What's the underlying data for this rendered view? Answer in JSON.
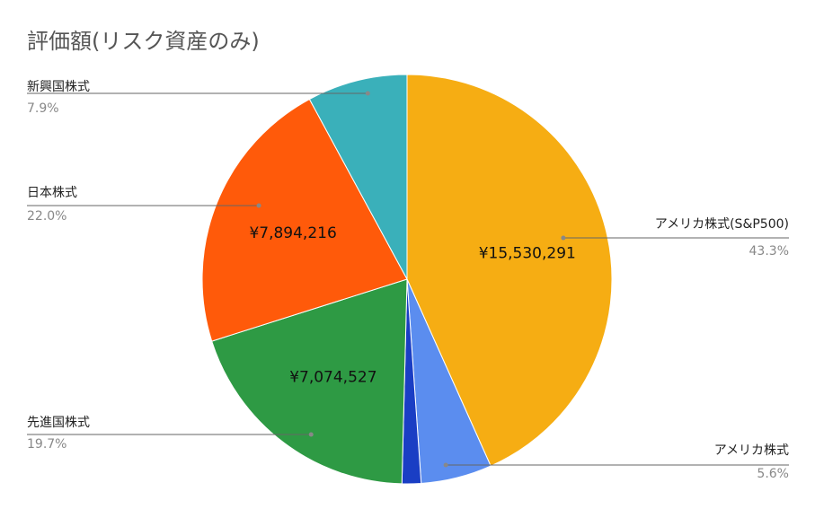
{
  "chart_data": {
    "type": "pie",
    "title": "評価額(リスク資産のみ)",
    "categories": [
      "アメリカ株式(S&P500)",
      "アメリカ株式",
      null,
      "先進国株式",
      "日本株式",
      "新興国株式"
    ],
    "values": [
      43.3,
      5.6,
      1.5,
      19.7,
      22.0,
      7.9
    ],
    "value_labels": [
      "43.3%",
      "5.6%",
      null,
      "19.7%",
      "22.0%",
      "7.9%"
    ],
    "amount_labels": [
      "¥15,530,291",
      null,
      null,
      "¥7,074,527",
      "¥7,894,216",
      null
    ],
    "colors": [
      "#f6ad13",
      "#5b8def",
      "#1a3ec4",
      "#2e9a44",
      "#ff5a0a",
      "#3ab0ba"
    ]
  }
}
